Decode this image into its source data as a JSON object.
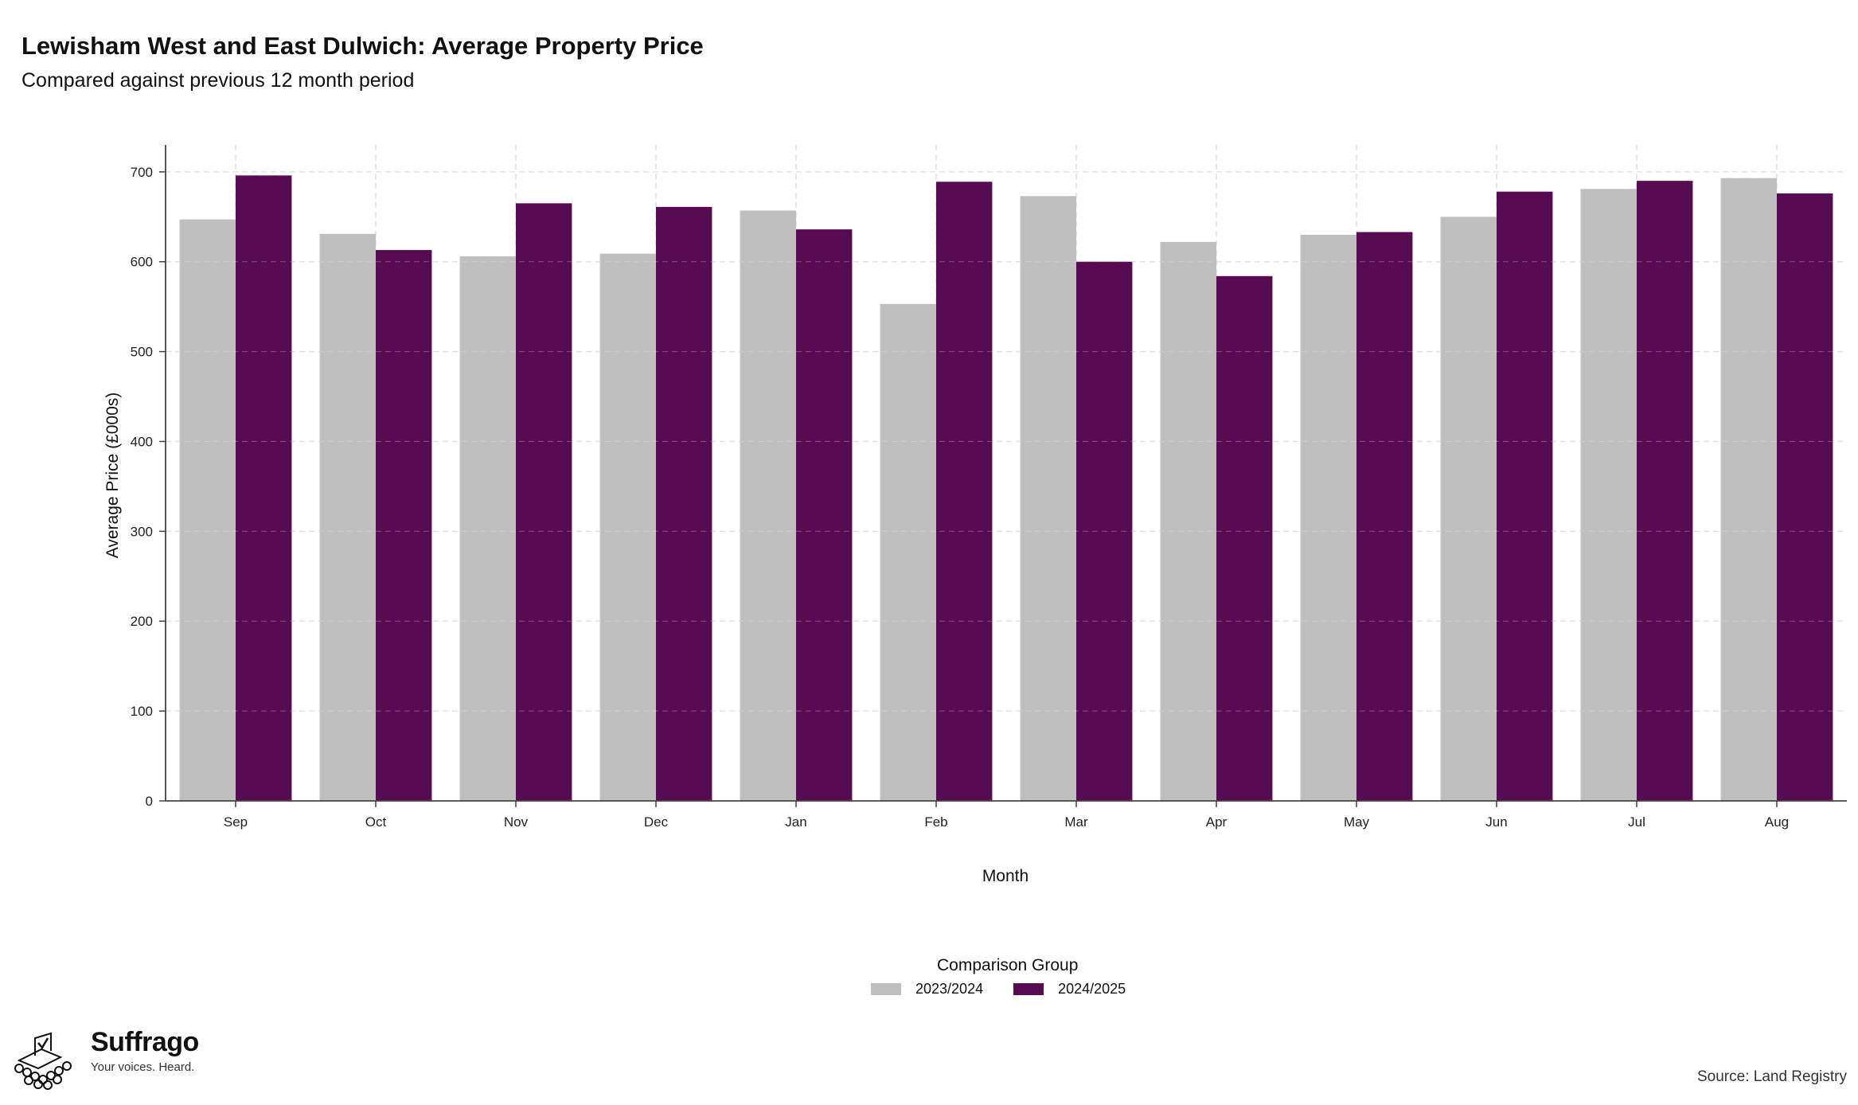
{
  "header": {
    "title": "Lewisham West and East Dulwich: Average Property Price",
    "subtitle": "Compared against previous 12 month period"
  },
  "legend": {
    "title": "Comparison Group",
    "items": [
      {
        "label": "2023/2024",
        "color": "#bfbfbf"
      },
      {
        "label": "2024/2025",
        "color": "#570c52"
      }
    ]
  },
  "branding": {
    "name": "Suffrago",
    "tagline": "Your voices. Heard."
  },
  "source": "Source: Land Registry",
  "chart_data": {
    "type": "bar",
    "xlabel": "Month",
    "ylabel": "Average Price (£000s)",
    "ylim": [
      0,
      730
    ],
    "yticks": [
      0,
      100,
      200,
      300,
      400,
      500,
      600,
      700
    ],
    "grid": true,
    "legend_position": "bottom",
    "categories": [
      "Sep",
      "Oct",
      "Nov",
      "Dec",
      "Jan",
      "Feb",
      "Mar",
      "Apr",
      "May",
      "Jun",
      "Jul",
      "Aug"
    ],
    "series": [
      {
        "name": "2023/2024",
        "color": "#bfbfbf",
        "values": [
          647,
          631,
          606,
          609,
          657,
          553,
          673,
          622,
          630,
          650,
          681,
          693
        ]
      },
      {
        "name": "2024/2025",
        "color": "#570c52",
        "values": [
          696,
          613,
          665,
          661,
          636,
          689,
          600,
          584,
          633,
          678,
          690,
          676
        ]
      }
    ]
  }
}
